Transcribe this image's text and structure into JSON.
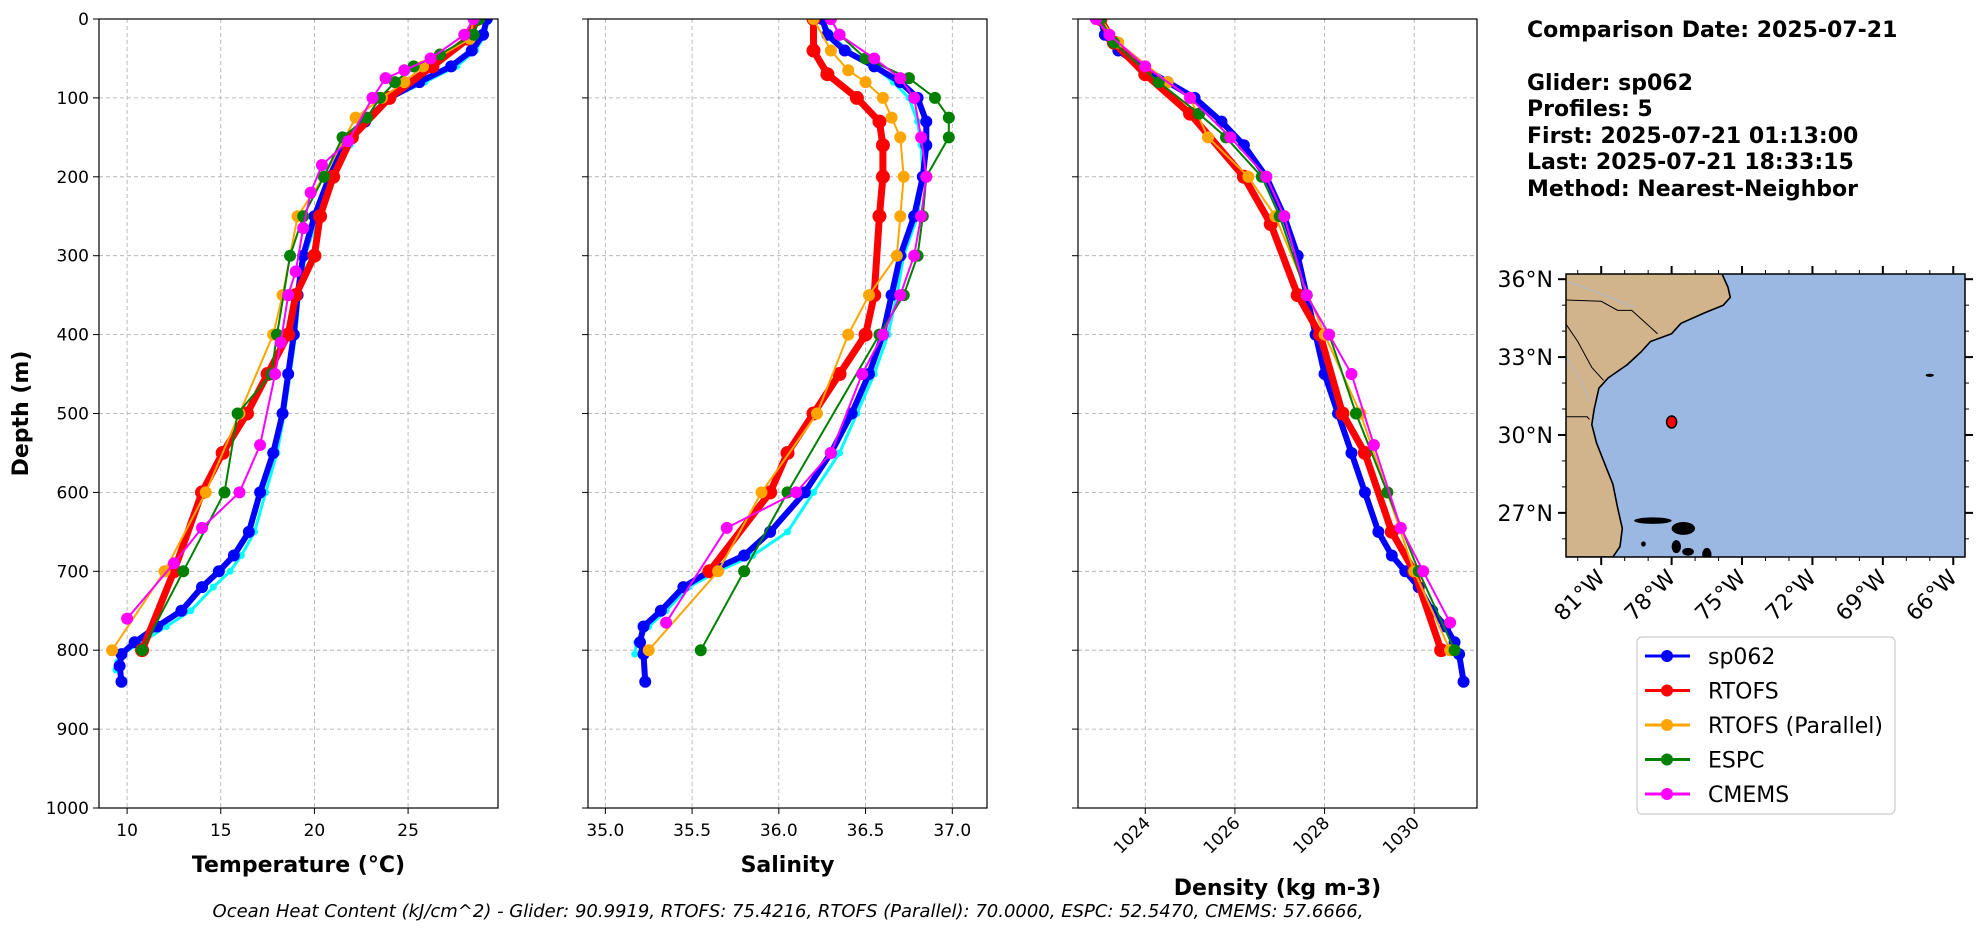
{
  "chart_data": {
    "type": "line",
    "depth_axis": {
      "label": "Depth (m)",
      "range": [
        0,
        1000
      ],
      "inverted": true,
      "ticks": [
        0,
        100,
        200,
        300,
        400,
        500,
        600,
        700,
        800,
        900,
        1000
      ]
    },
    "legend": {
      "placement": "below-map",
      "entries": [
        "sp062",
        "RTOFS",
        "RTOFS (Parallel)",
        "ESPC",
        "CMEMS"
      ]
    },
    "colors": {
      "sp062": "#0000ff",
      "sp062_raw": "#00ffff",
      "RTOFS": "#ff0000",
      "RTOFS (Parallel)": "#ffa500",
      "ESPC": "#008000",
      "CMEMS": "#ff00ff",
      "land": "#d2b48c",
      "ocean": "#9bb8e3",
      "grid": "#aaaaaa"
    },
    "panels": [
      {
        "id": "temperature",
        "xlabel": "Temperature (°C)",
        "xlim": [
          8.5,
          29.8
        ],
        "xticks": [
          10,
          15,
          20,
          25
        ],
        "tick_rotation": 0,
        "series": [
          {
            "name": "sp062_raw",
            "x": [
              29.3,
              29.1,
              28.6,
              27.6,
              25.9,
              24.1,
              22.8,
              21.9,
              21.1,
              20.2,
              19.5,
              19.2,
              19.0,
              18.7,
              18.4,
              18.0,
              17.4,
              16.8,
              16.1,
              15.5,
              14.6,
              13.4,
              12.1,
              10.8,
              9.7,
              9.5,
              9.4
            ],
            "y": [
              0,
              20,
              40,
              60,
              80,
              100,
              130,
              160,
              200,
              250,
              300,
              350,
              400,
              450,
              500,
              550,
              600,
              650,
              680,
              700,
              720,
              750,
              770,
              790,
              805,
              815,
              825
            ]
          },
          {
            "name": "sp062",
            "x": [
              29.2,
              29.0,
              28.4,
              27.3,
              25.6,
              24.0,
              22.7,
              21.6,
              20.8,
              20.0,
              19.4,
              19.1,
              18.9,
              18.6,
              18.3,
              17.8,
              17.1,
              16.5,
              15.7,
              14.9,
              14.0,
              12.9,
              11.6,
              10.4,
              9.7,
              9.6,
              9.7
            ],
            "y": [
              0,
              20,
              40,
              60,
              80,
              100,
              130,
              160,
              200,
              250,
              300,
              350,
              400,
              450,
              500,
              550,
              600,
              650,
              680,
              700,
              720,
              750,
              770,
              790,
              805,
              820,
              840
            ]
          },
          {
            "name": "RTOFS",
            "x": [
              28.7,
              28.2,
              26.3,
              24.0,
              22.0,
              21.0,
              20.3,
              20.0,
              19.0,
              18.6,
              17.5,
              16.4,
              15.1,
              14.0,
              12.5,
              10.8
            ],
            "y": [
              0,
              25,
              60,
              100,
              150,
              200,
              250,
              300,
              350,
              400,
              450,
              500,
              550,
              600,
              700,
              800
            ]
          },
          {
            "name": "RTOFS (Parallel)",
            "x": [
              28.5,
              28.3,
              25.8,
              24.8,
              23.6,
              22.2,
              20.5,
              19.1,
              18.3,
              17.8,
              16.0,
              14.2,
              12.0,
              9.2
            ],
            "y": [
              0,
              25,
              60,
              80,
              100,
              125,
              200,
              250,
              350,
              400,
              500,
              600,
              700,
              800
            ]
          },
          {
            "name": "ESPC",
            "x": [
              28.8,
              28.5,
              26.7,
              25.3,
              24.3,
              23.5,
              22.8,
              21.5,
              20.5,
              19.4,
              18.7,
              18.0,
              17.7,
              15.9,
              15.2,
              13.0,
              10.8
            ],
            "y": [
              0,
              20,
              45,
              60,
              80,
              100,
              125,
              150,
              200,
              250,
              300,
              400,
              450,
              500,
              600,
              700,
              800
            ]
          },
          {
            "name": "CMEMS",
            "x": [
              28.5,
              28.0,
              26.2,
              24.8,
              23.8,
              23.1,
              21.8,
              20.4,
              19.8,
              19.4,
              19.0,
              18.6,
              18.2,
              17.9,
              17.1,
              16.0,
              14.0,
              12.5,
              10.0
            ],
            "y": [
              0,
              20,
              50,
              65,
              75,
              100,
              155,
              185,
              220,
              265,
              320,
              350,
              410,
              450,
              540,
              600,
              645,
              690,
              760
            ]
          }
        ]
      },
      {
        "id": "salinity",
        "xlabel": "Salinity",
        "xlim": [
          34.9,
          37.2
        ],
        "xticks": [
          35.0,
          35.5,
          36.0,
          36.5,
          37.0
        ],
        "tick_rotation": 0,
        "series": [
          {
            "name": "sp062_raw",
            "x": [
              36.25,
              36.3,
              36.4,
              36.55,
              36.66,
              36.75,
              36.8,
              36.82,
              36.83,
              36.8,
              36.72,
              36.68,
              36.63,
              36.55,
              36.45,
              36.35,
              36.2,
              36.05,
              35.85,
              35.65,
              35.48,
              35.35,
              35.25,
              35.18,
              35.17
            ],
            "y": [
              0,
              20,
              40,
              60,
              80,
              100,
              130,
              160,
              200,
              250,
              300,
              350,
              400,
              450,
              500,
              550,
              600,
              650,
              680,
              700,
              720,
              750,
              770,
              790,
              805
            ]
          },
          {
            "name": "sp062",
            "x": [
              36.25,
              36.28,
              36.38,
              36.55,
              36.7,
              36.8,
              36.85,
              36.85,
              36.83,
              36.78,
              36.7,
              36.65,
              36.6,
              36.52,
              36.42,
              36.3,
              36.15,
              35.95,
              35.8,
              35.6,
              35.45,
              35.32,
              35.22,
              35.2,
              35.22,
              35.23
            ],
            "y": [
              0,
              20,
              40,
              60,
              80,
              100,
              130,
              160,
              200,
              250,
              300,
              350,
              400,
              450,
              500,
              550,
              600,
              650,
              680,
              700,
              720,
              750,
              770,
              790,
              805,
              840
            ]
          },
          {
            "name": "RTOFS",
            "x": [
              36.2,
              36.2,
              36.28,
              36.45,
              36.58,
              36.6,
              36.6,
              36.58,
              36.55,
              36.5,
              36.35,
              36.2,
              36.05,
              35.95,
              35.6
            ],
            "y": [
              0,
              40,
              70,
              100,
              130,
              160,
              200,
              250,
              350,
              400,
              450,
              500,
              550,
              600,
              700
            ]
          },
          {
            "name": "RTOFS (Parallel)",
            "x": [
              36.2,
              36.3,
              36.4,
              36.5,
              36.6,
              36.65,
              36.7,
              36.72,
              36.7,
              36.68,
              36.52,
              36.4,
              36.22,
              35.9,
              35.65,
              35.25
            ],
            "y": [
              0,
              40,
              65,
              80,
              100,
              125,
              150,
              200,
              250,
              300,
              350,
              400,
              500,
              600,
              700,
              800
            ]
          },
          {
            "name": "ESPC",
            "x": [
              36.3,
              36.35,
              36.5,
              36.75,
              36.9,
              36.98,
              36.98,
              36.85,
              36.83,
              36.8,
              36.72,
              36.58,
              36.05,
              35.8,
              35.55
            ],
            "y": [
              0,
              20,
              50,
              75,
              100,
              125,
              150,
              200,
              250,
              300,
              350,
              400,
              600,
              700,
              800
            ]
          },
          {
            "name": "CMEMS",
            "x": [
              36.3,
              36.35,
              36.55,
              36.7,
              36.78,
              36.82,
              36.85,
              36.82,
              36.78,
              36.7,
              36.6,
              36.48,
              36.3,
              36.1,
              35.7,
              35.35
            ],
            "y": [
              0,
              20,
              50,
              75,
              100,
              150,
              200,
              250,
              300,
              350,
              400,
              450,
              550,
              600,
              645,
              765
            ]
          }
        ]
      },
      {
        "id": "density",
        "xlabel": "Density (kg m-3)",
        "xlim": [
          1022.5,
          1031.4
        ],
        "xticks": [
          1024,
          1026,
          1028,
          1030
        ],
        "tick_rotation": -45,
        "series": [
          {
            "name": "sp062_raw",
            "x": [
              1023.0,
              1023.1,
              1023.4,
              1023.9,
              1024.5,
              1025.1,
              1025.7,
              1026.2,
              1026.7,
              1027.1,
              1027.4,
              1027.6,
              1027.8,
              1028.0,
              1028.3,
              1028.6,
              1028.9,
              1029.2,
              1029.5,
              1029.8,
              1030.1,
              1030.4,
              1030.7,
              1030.9,
              1031.0
            ],
            "y": [
              0,
              20,
              40,
              60,
              80,
              100,
              130,
              160,
              200,
              250,
              300,
              350,
              400,
              450,
              500,
              550,
              600,
              650,
              680,
              700,
              720,
              750,
              770,
              790,
              805
            ]
          },
          {
            "name": "sp062",
            "x": [
              1023.0,
              1023.1,
              1023.4,
              1023.9,
              1024.5,
              1025.1,
              1025.7,
              1026.2,
              1026.7,
              1027.1,
              1027.4,
              1027.6,
              1027.8,
              1028.0,
              1028.3,
              1028.6,
              1028.9,
              1029.2,
              1029.5,
              1029.8,
              1030.1,
              1030.4,
              1030.7,
              1030.9,
              1031.0,
              1031.1
            ],
            "y": [
              0,
              20,
              40,
              60,
              80,
              100,
              130,
              160,
              200,
              250,
              300,
              350,
              400,
              450,
              500,
              550,
              600,
              650,
              680,
              700,
              720,
              750,
              770,
              790,
              805,
              840
            ]
          },
          {
            "name": "RTOFS",
            "x": [
              1023.0,
              1023.3,
              1024.0,
              1025.0,
              1026.2,
              1026.8,
              1027.4,
              1027.9,
              1028.4,
              1028.9,
              1029.5,
              1030.0,
              1030.6
            ],
            "y": [
              0,
              30,
              70,
              120,
              200,
              260,
              350,
              400,
              500,
              550,
              650,
              700,
              800
            ]
          },
          {
            "name": "RTOFS (Parallel)",
            "x": [
              1023.0,
              1023.4,
              1024.5,
              1025.0,
              1025.4,
              1026.3,
              1026.9,
              1028.0,
              1028.8,
              1029.4,
              1030.0,
              1030.8
            ],
            "y": [
              0,
              30,
              80,
              100,
              150,
              200,
              250,
              400,
              500,
              600,
              700,
              800
            ]
          },
          {
            "name": "ESPC",
            "x": [
              1023.0,
              1023.3,
              1024.3,
              1025.2,
              1025.8,
              1026.6,
              1027.0,
              1027.6,
              1028.1,
              1028.7,
              1029.4,
              1030.1,
              1030.9
            ],
            "y": [
              0,
              30,
              80,
              120,
              150,
              200,
              250,
              350,
              400,
              500,
              600,
              700,
              800
            ]
          },
          {
            "name": "CMEMS",
            "x": [
              1022.9,
              1023.2,
              1024.0,
              1025.0,
              1025.9,
              1026.7,
              1027.1,
              1027.6,
              1028.1,
              1028.6,
              1029.1,
              1029.7,
              1030.2,
              1030.8
            ],
            "y": [
              0,
              20,
              60,
              100,
              150,
              200,
              250,
              350,
              400,
              450,
              540,
              645,
              700,
              765
            ]
          }
        ]
      }
    ],
    "info": {
      "comparison_date": "Comparison Date: 2025-07-21",
      "glider": "Glider: sp062",
      "profiles": "Profiles: 5",
      "first": "First: 2025-07-21 01:13:00",
      "last": "Last: 2025-07-21 18:33:15",
      "method": "Method: Nearest-Neighbor"
    },
    "map": {
      "lon_range": [
        -82.5,
        -65.5
      ],
      "lat_range": [
        25.3,
        36.2
      ],
      "lon_ticks": [
        -81,
        -78,
        -75,
        -72,
        -69,
        -66
      ],
      "lon_tick_labels": [
        "81°W",
        "78°W",
        "75°W",
        "72°W",
        "69°W",
        "66°W"
      ],
      "lat_ticks": [
        27,
        30,
        33,
        36
      ],
      "lat_tick_labels": [
        "27°N",
        "30°N",
        "33°N",
        "36°N"
      ],
      "glider_location": {
        "lon": -78.0,
        "lat": 30.5
      }
    },
    "footer": "Ocean Heat Content (kJ/cm^2) - Glider: 90.9919,  RTOFS: 75.4216,  RTOFS (Parallel): 70.0000,  ESPC: 52.5470,  CMEMS: 57.6666,"
  }
}
